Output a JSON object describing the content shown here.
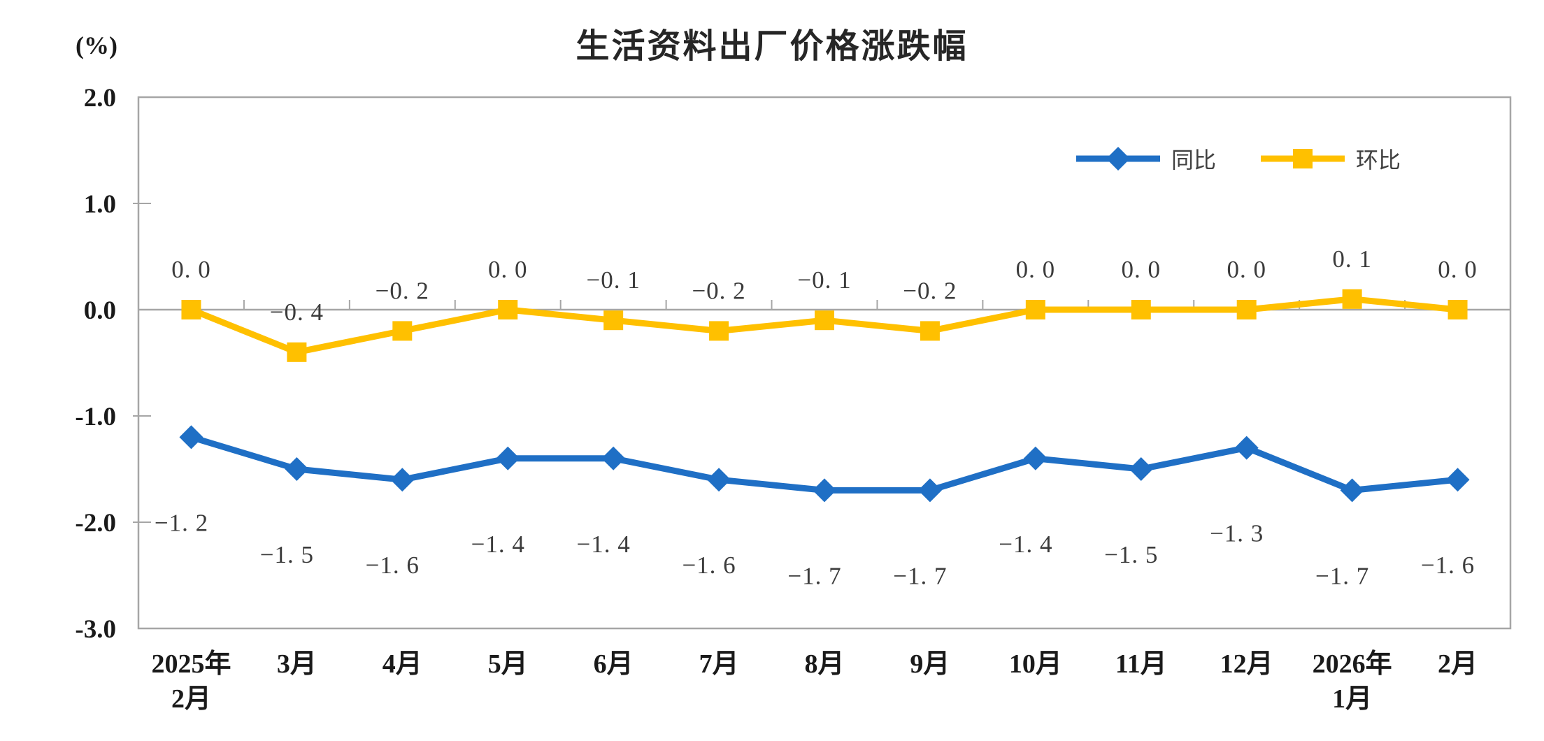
{
  "chart_data": {
    "type": "line",
    "title": "生活资料出厂价格涨跌幅",
    "ylabel": "(%)",
    "xlabel": "",
    "ylim": [
      -3.0,
      2.0
    ],
    "ytick_step": 1.0,
    "ytick_labels": [
      "2.0",
      "1.0",
      "0.0",
      "-1.0",
      "-2.0",
      "-3.0"
    ],
    "grid": false,
    "legend_position": "top-right",
    "categories": [
      "2025年2月",
      "3月",
      "4月",
      "5月",
      "6月",
      "7月",
      "8月",
      "9月",
      "10月",
      "11月",
      "12月",
      "2026年1月",
      "2月"
    ],
    "category_label_lines": [
      [
        "2025年",
        "2月"
      ],
      [
        "3月"
      ],
      [
        "4月"
      ],
      [
        "5月"
      ],
      [
        "6月"
      ],
      [
        "7月"
      ],
      [
        "8月"
      ],
      [
        "9月"
      ],
      [
        "10月"
      ],
      [
        "11月"
      ],
      [
        "12月"
      ],
      [
        "2026年",
        "1月"
      ],
      [
        "2月"
      ]
    ],
    "series": [
      {
        "name": "同比",
        "color": "#1F6FC5",
        "marker": "diamond",
        "label_position": "below",
        "values": [
          -1.2,
          -1.5,
          -1.6,
          -1.4,
          -1.4,
          -1.6,
          -1.7,
          -1.7,
          -1.4,
          -1.5,
          -1.3,
          -1.7,
          -1.6
        ],
        "labels": [
          "−1. 2",
          "−1. 5",
          "−1. 6",
          "−1. 4",
          "−1. 4",
          "−1. 6",
          "−1. 7",
          "−1. 7",
          "−1. 4",
          "−1. 5",
          "−1. 3",
          "−1. 7",
          "−1. 6"
        ]
      },
      {
        "name": "环比",
        "color": "#FFC000",
        "marker": "square",
        "label_position": "above",
        "values": [
          0.0,
          -0.4,
          -0.2,
          0.0,
          -0.1,
          -0.2,
          -0.1,
          -0.2,
          0.0,
          0.0,
          0.0,
          0.1,
          0.0
        ],
        "labels": [
          "0. 0",
          "−0. 4",
          "−0. 2",
          "0. 0",
          "−0. 1",
          "−0. 2",
          "−0. 1",
          "−0. 2",
          "0. 0",
          "0. 0",
          "0. 0",
          "0. 1",
          "0. 0"
        ]
      }
    ]
  },
  "colors": {
    "axis": "#A6A6A6",
    "text": "#1A1A1A",
    "data_label": "#3B3B3B",
    "title": "#262626"
  }
}
